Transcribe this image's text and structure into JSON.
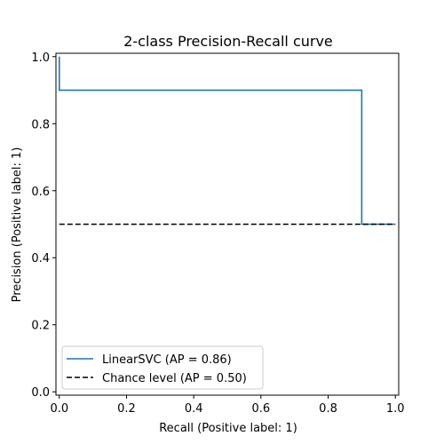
{
  "chart_data": {
    "type": "line",
    "title": "2-class Precision-Recall curve",
    "xlabel": "Recall (Positive label: 1)",
    "ylabel": "Precision (Positive label: 1)",
    "xlim": [
      -0.01,
      1.01
    ],
    "ylim": [
      -0.01,
      1.01
    ],
    "xticks": [
      "0.0",
      "0.2",
      "0.4",
      "0.6",
      "0.8",
      "1.0"
    ],
    "yticks": [
      "0.0",
      "0.2",
      "0.4",
      "0.6",
      "0.8",
      "1.0"
    ],
    "grid": false,
    "legend_position": "lower-left",
    "series": [
      {
        "name": "LinearSVC (AP = 0.86)",
        "color": "#1f77b4",
        "style": "solid",
        "drawstyle": "steps-post",
        "x": [
          1.0,
          0.9,
          0.9,
          0.0,
          0.0
        ],
        "y": [
          0.5,
          0.5,
          0.9,
          0.9,
          1.0
        ]
      },
      {
        "name": "Chance level (AP = 0.50)",
        "color": "#000000",
        "style": "dashed",
        "x": [
          0.0,
          1.0
        ],
        "y": [
          0.5,
          0.5
        ]
      }
    ]
  }
}
